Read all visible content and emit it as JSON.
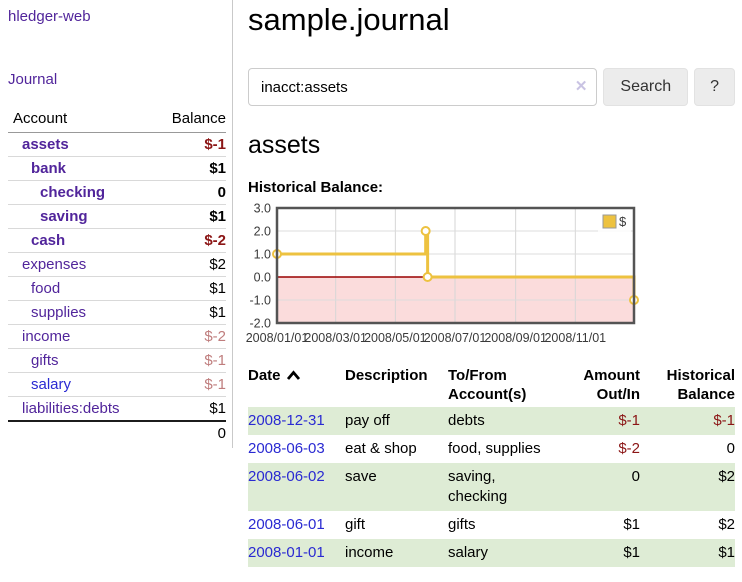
{
  "app": {
    "title": "hledger-web",
    "nav_journal": "Journal"
  },
  "sidebar": {
    "table_headers": {
      "account": "Account",
      "balance": "Balance"
    },
    "accounts": [
      {
        "name": "assets",
        "depth": 1,
        "bold": true,
        "link": "purple",
        "balance": "$-1",
        "balance_style": "neg-strong"
      },
      {
        "name": "bank",
        "depth": 2,
        "bold": true,
        "link": "purple",
        "balance": "$1",
        "balance_style": "normal"
      },
      {
        "name": "checking",
        "depth": 3,
        "bold": true,
        "link": "purple",
        "balance": "0",
        "balance_style": "normal"
      },
      {
        "name": "saving",
        "depth": 3,
        "bold": true,
        "link": "purple",
        "balance": "$1",
        "balance_style": "normal"
      },
      {
        "name": "cash",
        "depth": 2,
        "bold": true,
        "link": "purple",
        "balance": "$-2",
        "balance_style": "neg-strong"
      },
      {
        "name": "expenses",
        "depth": 1,
        "bold": false,
        "link": "purple",
        "balance": "$2",
        "balance_style": "normal"
      },
      {
        "name": "food",
        "depth": 2,
        "bold": false,
        "link": "purple",
        "balance": "$1",
        "balance_style": "normal"
      },
      {
        "name": "supplies",
        "depth": 2,
        "bold": false,
        "link": "purple",
        "balance": "$1",
        "balance_style": "normal"
      },
      {
        "name": "income",
        "depth": 1,
        "bold": false,
        "link": "purple",
        "balance": "$-2",
        "balance_style": "neg-soft"
      },
      {
        "name": "gifts",
        "depth": 2,
        "bold": false,
        "link": "purple",
        "balance": "$-1",
        "balance_style": "neg-soft"
      },
      {
        "name": "salary",
        "depth": 2,
        "bold": false,
        "link": "blue",
        "balance": "$-1",
        "balance_style": "neg-soft"
      },
      {
        "name": "liabilities:debts",
        "depth": 1,
        "bold": false,
        "link": "purple",
        "balance": "$1",
        "balance_style": "normal"
      }
    ],
    "total": "0"
  },
  "header": {
    "title": "sample.journal"
  },
  "search": {
    "value": "inacct:assets",
    "clear_icon": "✕",
    "button_label": "Search",
    "help_label": "?"
  },
  "account_page": {
    "heading": "assets",
    "chart_label": "Historical Balance:"
  },
  "chart_data": {
    "type": "line",
    "steps": true,
    "title": "Historical Balance",
    "series": [
      {
        "name": "$",
        "color": "#EDC240",
        "points": [
          [
            "2008-01-01",
            1
          ],
          [
            "2008-06-01",
            2
          ],
          [
            "2008-06-03",
            0
          ],
          [
            "2008-12-31",
            -1
          ]
        ]
      }
    ],
    "x_start": "2008-01-01",
    "x_end": "2008-12-31",
    "xticks": [
      "2008/01/01",
      "2008/03/01",
      "2008/05/01",
      "2008/07/01",
      "2008/09/01",
      "2008/11/01"
    ],
    "yticks": [
      3.0,
      2.0,
      1.0,
      0.0,
      -1.0,
      -2.0
    ],
    "ylim": [
      -2,
      3
    ],
    "legend": "$",
    "legend_position": "top-right",
    "grid": true,
    "negative_fill": "#fbdcdc",
    "zero_line_color": "#9a0000",
    "border_color": "#545454",
    "gridline_color": "#d6d6d6"
  },
  "register": {
    "headers": {
      "date": "Date",
      "description": "Description",
      "account": "To/From Account(s)",
      "amount": "Amount Out/In",
      "balance": "Historical Balance"
    },
    "rows": [
      {
        "date": "2008-12-31",
        "description": "pay off",
        "account_lines": [
          "debts"
        ],
        "amount": "$-1",
        "amount_neg": true,
        "balance": "$-1",
        "balance_neg": true,
        "highlight": true
      },
      {
        "date": "2008-06-03",
        "description": "eat & shop",
        "account_lines": [
          "food, supplies"
        ],
        "amount": "$-2",
        "amount_neg": true,
        "balance": "0",
        "balance_neg": false,
        "highlight": false
      },
      {
        "date": "2008-06-02",
        "description": "save",
        "account_lines": [
          "saving,",
          "checking"
        ],
        "amount": "0",
        "amount_neg": false,
        "balance": "$2",
        "balance_neg": false,
        "highlight": true
      },
      {
        "date": "2008-06-01",
        "description": "gift",
        "account_lines": [
          "gifts"
        ],
        "amount": "$1",
        "amount_neg": false,
        "balance": "$2",
        "balance_neg": false,
        "highlight": false
      },
      {
        "date": "2008-01-01",
        "description": "income",
        "account_lines": [
          "salary"
        ],
        "amount": "$1",
        "amount_neg": false,
        "balance": "$1",
        "balance_neg": false,
        "highlight": true
      }
    ]
  }
}
